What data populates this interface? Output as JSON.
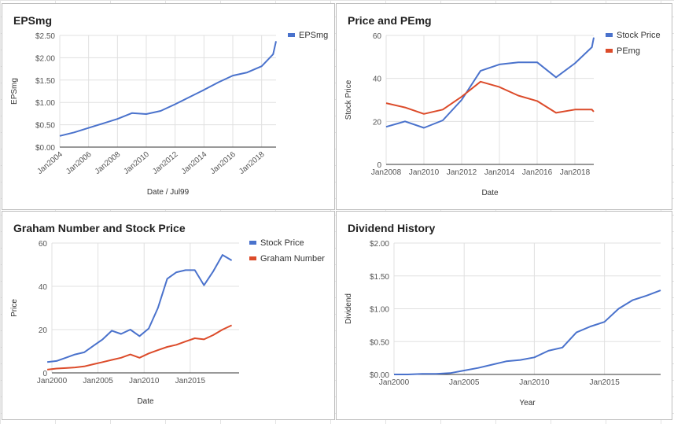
{
  "chart_data": [
    {
      "type": "line",
      "title": "EPSmg",
      "xlabel": "Date / Jul99",
      "ylabel": "EPSmg",
      "x_ticks": [
        "Jan2004",
        "Jan2006",
        "Jan2008",
        "Jan2010",
        "Jan2012",
        "Jan2014",
        "Jan2016",
        "Jan2018"
      ],
      "y_ticks": [
        "$0.00",
        "$0.50",
        "$1.00",
        "$1.50",
        "$2.00",
        "$2.50"
      ],
      "xlim": [
        2004.0,
        2019.0
      ],
      "ylim": [
        0,
        2.5
      ],
      "legend_position": "top-right",
      "x": [
        2004.0,
        2005.0,
        2006.0,
        2007.0,
        2008.0,
        2009.0,
        2010.0,
        2011.0,
        2012.0,
        2013.0,
        2014.0,
        2015.0,
        2016.0,
        2017.0,
        2018.0,
        2018.8,
        2019.0
      ],
      "series": [
        {
          "name": "EPSmg",
          "color": "#4a72cc",
          "values": [
            0.25,
            0.33,
            0.43,
            0.53,
            0.63,
            0.76,
            0.74,
            0.81,
            0.96,
            1.12,
            1.28,
            1.45,
            1.6,
            1.67,
            1.81,
            2.08,
            2.37
          ]
        }
      ]
    },
    {
      "type": "line",
      "title": "Price and PEmg",
      "xlabel": "Date",
      "ylabel": "Stock Price",
      "x_ticks": [
        "Jan2008",
        "Jan2010",
        "Jan2012",
        "Jan2014",
        "Jan2016",
        "Jan2018"
      ],
      "y_ticks": [
        "0",
        "20",
        "40",
        "60"
      ],
      "xlim": [
        2008.0,
        2019.0
      ],
      "ylim": [
        0,
        60
      ],
      "legend_position": "top-right",
      "x": [
        2008.0,
        2009.0,
        2010.0,
        2011.0,
        2012.0,
        2013.0,
        2014.0,
        2015.0,
        2016.0,
        2017.0,
        2018.0,
        2018.9,
        2019.0
      ],
      "series": [
        {
          "name": "Stock Price",
          "color": "#4a72cc",
          "values": [
            17.5,
            20.0,
            17.0,
            20.5,
            30.0,
            43.5,
            46.5,
            47.5,
            47.5,
            40.5,
            47.0,
            54.5,
            59.0
          ]
        },
        {
          "name": "PEmg",
          "color": "#dc4b2a",
          "values": [
            28.5,
            26.5,
            23.5,
            25.5,
            31.5,
            38.5,
            36.0,
            32.0,
            29.5,
            24.0,
            25.5,
            25.5,
            24.5
          ]
        }
      ]
    },
    {
      "type": "line",
      "title": "Graham Number and Stock Price",
      "xlabel": "Date",
      "ylabel": "Price",
      "x_ticks": [
        "Jan2000",
        "Jan2005",
        "Jan2010",
        "Jan2015"
      ],
      "y_ticks": [
        "0",
        "20",
        "40",
        "60"
      ],
      "xlim": [
        2000.0,
        2020.3
      ],
      "ylim": [
        0,
        60
      ],
      "legend_position": "top-right",
      "x": [
        1999.5,
        2000.5,
        2001.5,
        2002.5,
        2003.5,
        2004.5,
        2005.5,
        2006.5,
        2007.5,
        2008.5,
        2009.5,
        2010.5,
        2011.5,
        2012.5,
        2013.5,
        2014.5,
        2015.5,
        2016.5,
        2017.5,
        2018.5,
        2019.5
      ],
      "series": [
        {
          "name": "Stock Price",
          "color": "#4a72cc",
          "values": [
            5.0,
            5.5,
            7.0,
            8.5,
            9.5,
            12.5,
            15.5,
            19.5,
            18.0,
            20.0,
            17.0,
            20.5,
            30.0,
            43.5,
            46.5,
            47.5,
            47.5,
            40.5,
            47.0,
            54.5,
            52.0
          ]
        },
        {
          "name": "Graham Number",
          "color": "#dc4b2a",
          "values": [
            1.5,
            2.0,
            2.2,
            2.5,
            3.0,
            4.0,
            5.0,
            6.0,
            7.0,
            8.5,
            7.0,
            9.0,
            10.5,
            12.0,
            13.0,
            14.5,
            16.0,
            15.5,
            17.5,
            20.0,
            22.0
          ]
        }
      ]
    },
    {
      "type": "line",
      "title": "Dividend History",
      "xlabel": "Year",
      "ylabel": "Dividend",
      "x_ticks": [
        "Jan2000",
        "Jan2005",
        "Jan2010",
        "Jan2015"
      ],
      "y_ticks": [
        "$0.00",
        "$0.50",
        "$1.00",
        "$1.50",
        "$2.00"
      ],
      "xlim": [
        2000.0,
        2019.0
      ],
      "ylim": [
        0,
        2.0
      ],
      "legend_position": "none",
      "x": [
        2000.0,
        2001.0,
        2002.0,
        2003.0,
        2004.0,
        2005.0,
        2006.0,
        2007.0,
        2008.0,
        2009.0,
        2010.0,
        2011.0,
        2012.0,
        2013.0,
        2014.0,
        2015.0,
        2016.0,
        2017.0,
        2018.0,
        2019.0
      ],
      "series": [
        {
          "name": "Dividend",
          "color": "#4a72cc",
          "values": [
            0.0,
            0.0,
            0.01,
            0.01,
            0.02,
            0.06,
            0.1,
            0.15,
            0.2,
            0.22,
            0.26,
            0.36,
            0.41,
            0.64,
            0.73,
            0.8,
            1.0,
            1.13,
            1.2,
            1.28
          ]
        }
      ]
    }
  ]
}
